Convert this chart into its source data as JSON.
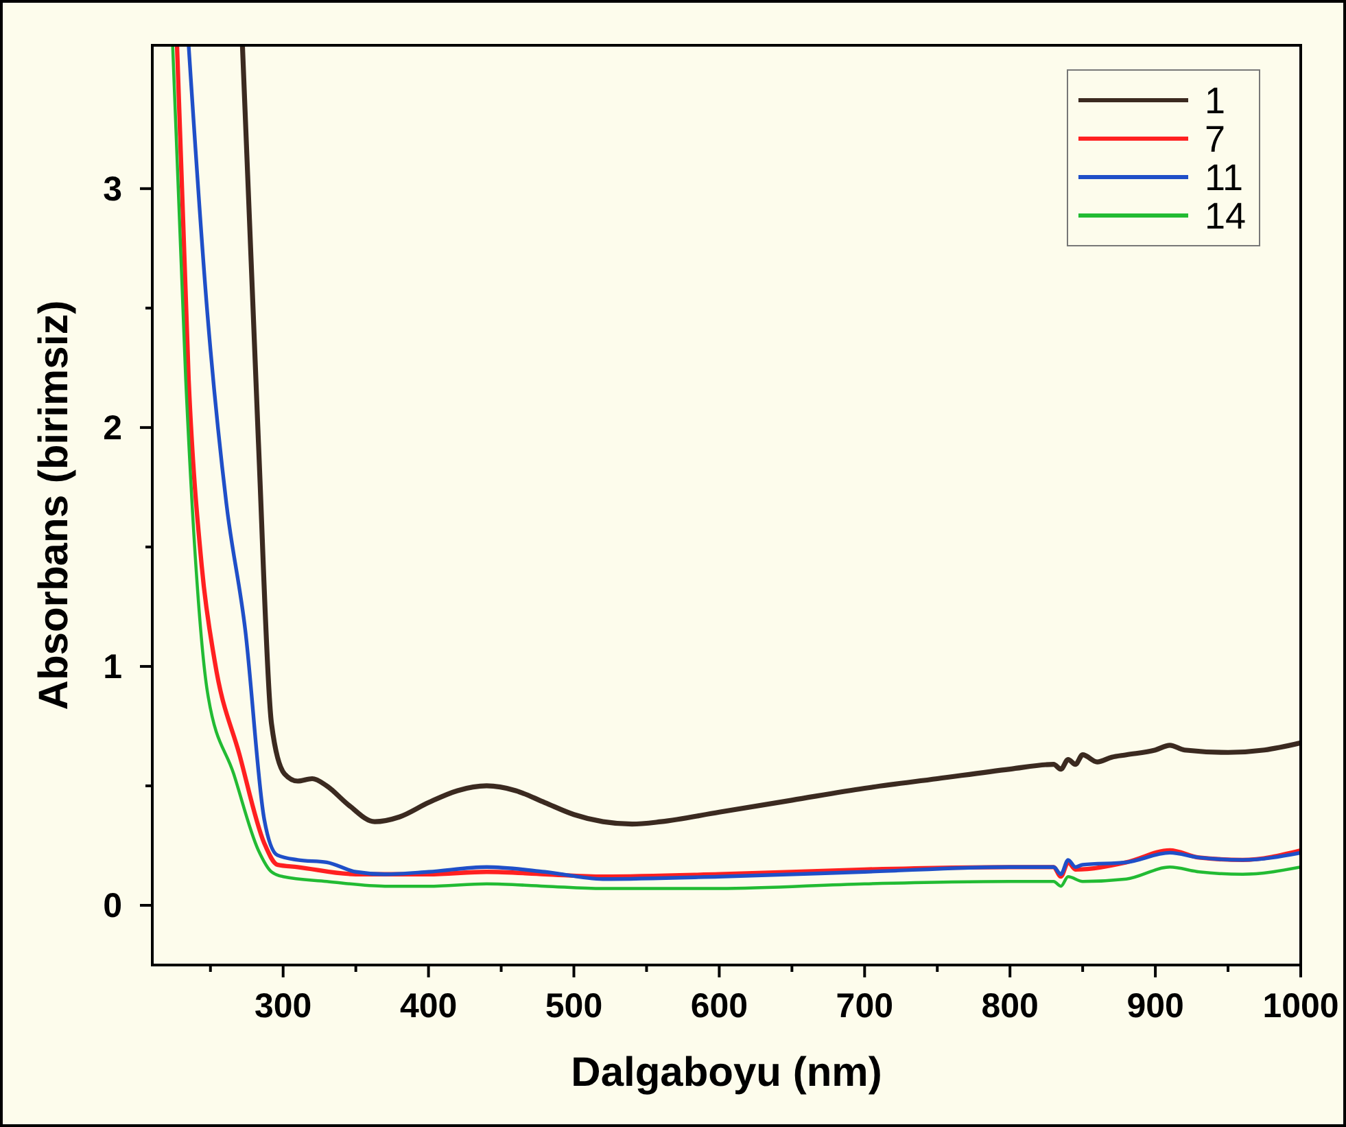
{
  "chart_data": {
    "type": "line",
    "xlabel": "Dalgaboyu (nm)",
    "ylabel": "Absorbans (birimsiz)",
    "xlim": [
      210,
      1000
    ],
    "ylim": [
      -0.25,
      3.6
    ],
    "xticks": [
      {
        "value": 250,
        "label": null
      },
      300,
      {
        "value": 350,
        "label": null
      },
      400,
      {
        "value": 450,
        "label": null
      },
      500,
      {
        "value": 550,
        "label": null
      },
      600,
      {
        "value": 650,
        "label": null
      },
      700,
      {
        "value": 750,
        "label": null
      },
      800,
      {
        "value": 850,
        "label": null
      },
      900,
      {
        "value": 950,
        "label": null
      },
      1000
    ],
    "yticks": [
      0,
      {
        "value": 0.5,
        "label": null
      },
      1,
      {
        "value": 1.5,
        "label": null
      },
      2,
      {
        "value": 2.5,
        "label": null
      },
      3
    ],
    "grid": false,
    "legend": "top right",
    "line_style": "solid",
    "series": [
      {
        "name": "1",
        "color": "#3b2a20",
        "x": [
          272,
          283,
          292,
          301,
          310,
          320,
          330,
          345,
          363,
          380,
          400,
          420,
          440,
          460,
          480,
          500,
          520,
          540,
          560,
          600,
          650,
          700,
          750,
          800,
          830,
          835,
          840,
          845,
          850,
          860,
          870,
          880,
          900,
          910,
          920,
          950,
          975,
          1000
        ],
        "values": [
          3.6,
          1.94,
          0.76,
          0.55,
          0.52,
          0.53,
          0.5,
          0.42,
          0.35,
          0.37,
          0.43,
          0.48,
          0.5,
          0.48,
          0.43,
          0.38,
          0.35,
          0.34,
          0.35,
          0.39,
          0.44,
          0.49,
          0.53,
          0.57,
          0.59,
          0.57,
          0.61,
          0.59,
          0.63,
          0.6,
          0.62,
          0.63,
          0.65,
          0.67,
          0.65,
          0.64,
          0.65,
          0.68
        ]
      },
      {
        "name": "7",
        "color": "#ff2020",
        "x": [
          227,
          235,
          244,
          253,
          270,
          287,
          296,
          310,
          350,
          400,
          440,
          480,
          520,
          600,
          700,
          800,
          830,
          835,
          840,
          845,
          880,
          910,
          930,
          960,
          1000
        ],
        "values": [
          3.6,
          2.2,
          1.42,
          1.02,
          0.63,
          0.26,
          0.17,
          0.16,
          0.13,
          0.13,
          0.14,
          0.13,
          0.12,
          0.13,
          0.15,
          0.16,
          0.16,
          0.12,
          0.18,
          0.15,
          0.18,
          0.23,
          0.2,
          0.19,
          0.23
        ]
      },
      {
        "name": "11",
        "color": "#1f4fc8",
        "x": [
          235,
          248,
          261,
          274,
          287,
          296,
          310,
          330,
          350,
          370,
          400,
          440,
          480,
          520,
          600,
          700,
          800,
          830,
          835,
          840,
          845,
          850,
          880,
          910,
          930,
          960,
          1000
        ],
        "values": [
          3.6,
          2.47,
          1.68,
          1.15,
          0.36,
          0.21,
          0.19,
          0.18,
          0.14,
          0.13,
          0.14,
          0.16,
          0.14,
          0.11,
          0.12,
          0.14,
          0.16,
          0.16,
          0.13,
          0.19,
          0.16,
          0.17,
          0.18,
          0.22,
          0.2,
          0.19,
          0.22
        ]
      },
      {
        "name": "14",
        "color": "#22bb33",
        "x": [
          224,
          233,
          240,
          248,
          266,
          283,
          292,
          300,
          330,
          370,
          400,
          440,
          480,
          520,
          600,
          700,
          800,
          830,
          835,
          840,
          850,
          880,
          910,
          930,
          960,
          1000
        ],
        "values": [
          3.6,
          2.2,
          1.42,
          0.89,
          0.55,
          0.23,
          0.14,
          0.12,
          0.1,
          0.08,
          0.08,
          0.09,
          0.08,
          0.07,
          0.07,
          0.09,
          0.1,
          0.1,
          0.08,
          0.12,
          0.1,
          0.11,
          0.16,
          0.14,
          0.13,
          0.16
        ]
      }
    ]
  }
}
